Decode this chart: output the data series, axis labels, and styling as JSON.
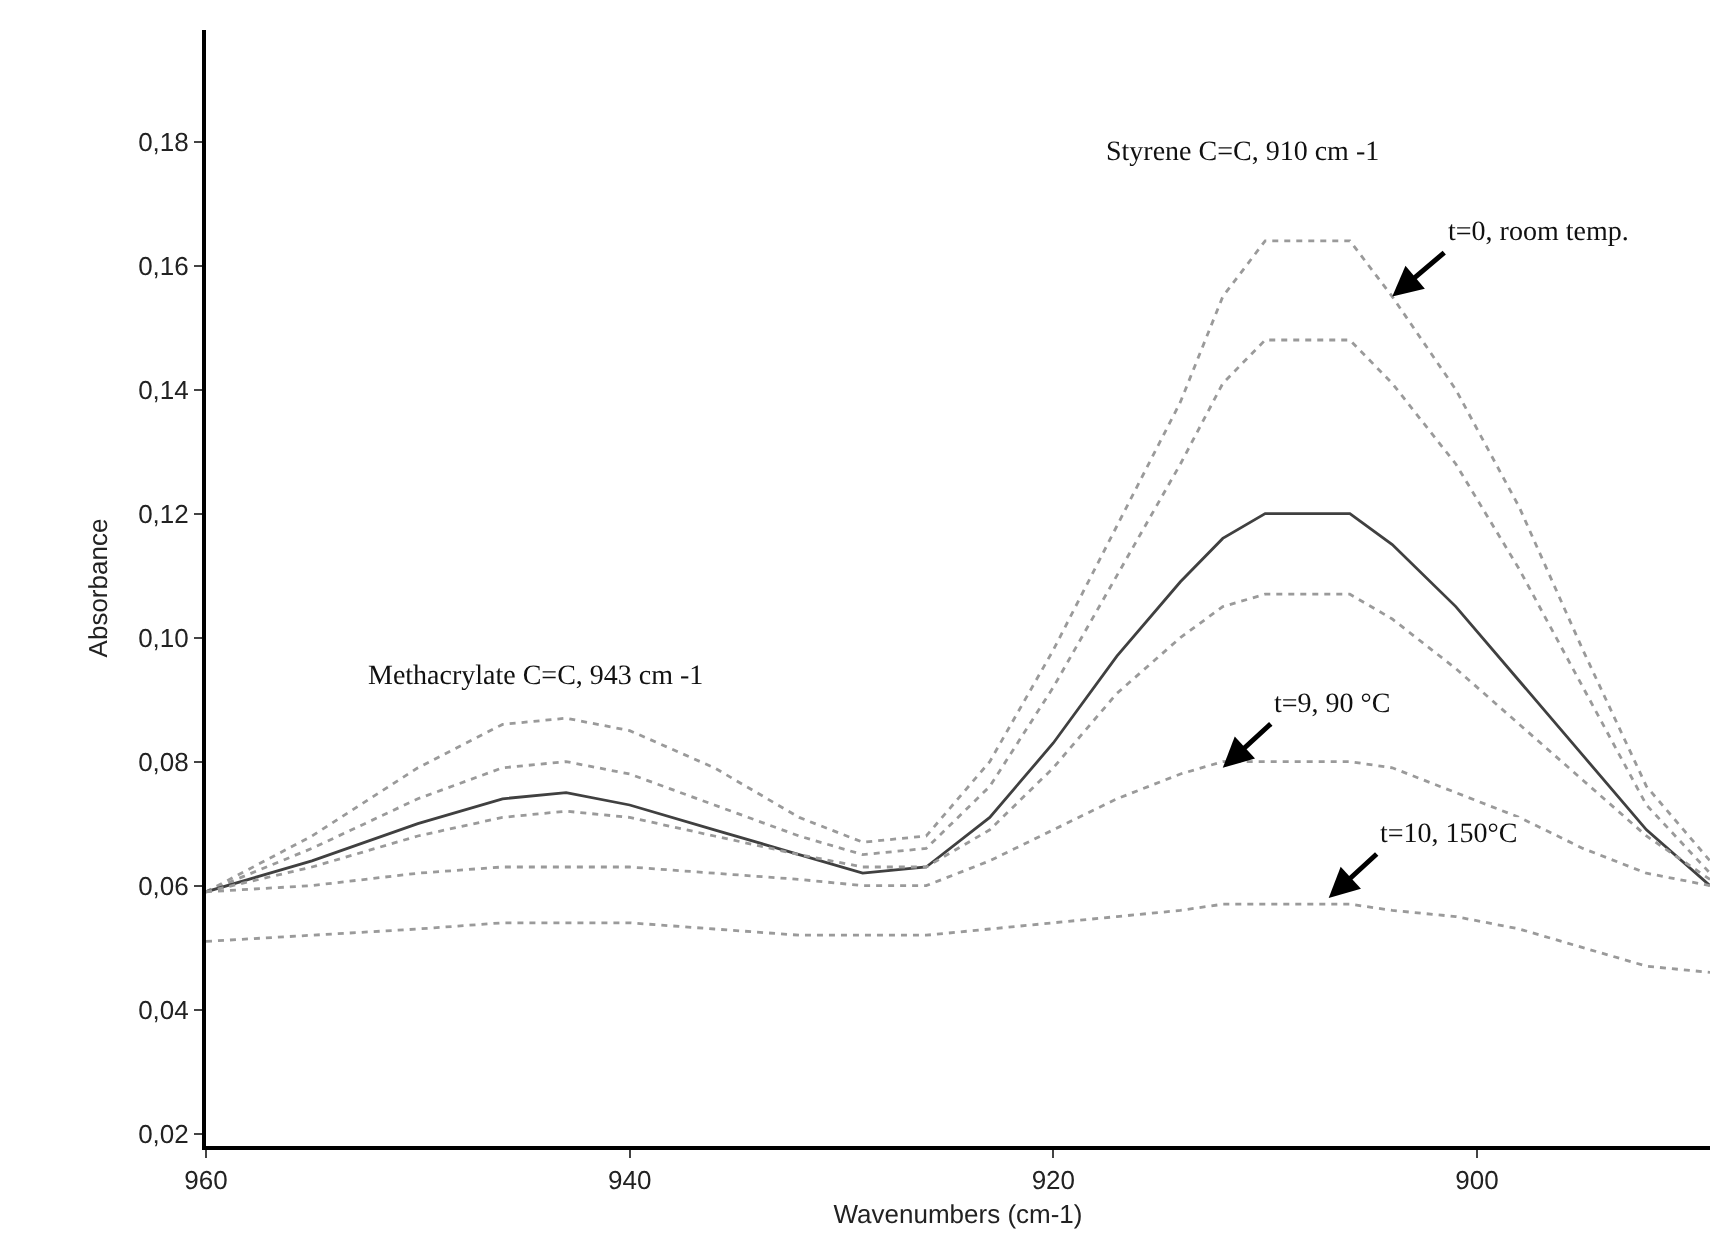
{
  "chart_data": {
    "type": "line",
    "xlabel": "Wavenumbers (cm-1)",
    "ylabel": "Absorbance",
    "x": [
      960,
      955,
      950,
      946,
      943,
      940,
      936,
      932,
      929,
      926,
      923,
      920,
      917,
      914,
      912,
      910,
      906,
      904,
      901,
      898,
      895,
      892,
      889
    ],
    "series": [
      {
        "color": "#9a9a9a",
        "line_style": "dotted",
        "values": [
          0.059,
          0.068,
          0.079,
          0.086,
          0.087,
          0.085,
          0.079,
          0.071,
          0.067,
          0.068,
          0.08,
          0.098,
          0.118,
          0.138,
          0.155,
          0.164,
          0.164,
          0.155,
          0.14,
          0.121,
          0.098,
          0.076,
          0.064
        ]
      },
      {
        "color": "#9a9a9a",
        "line_style": "dotted",
        "values": [
          0.059,
          0.066,
          0.074,
          0.079,
          0.08,
          0.078,
          0.073,
          0.068,
          0.065,
          0.066,
          0.076,
          0.092,
          0.11,
          0.128,
          0.141,
          0.148,
          0.148,
          0.141,
          0.128,
          0.111,
          0.092,
          0.073,
          0.062
        ]
      },
      {
        "color": "#404040",
        "line_style": "solid",
        "values": [
          0.059,
          0.064,
          0.07,
          0.074,
          0.075,
          0.073,
          0.069,
          0.065,
          0.062,
          0.063,
          0.071,
          0.083,
          0.097,
          0.109,
          0.116,
          0.12,
          0.12,
          0.115,
          0.105,
          0.093,
          0.081,
          0.069,
          0.06
        ]
      },
      {
        "color": "#9a9a9a",
        "line_style": "dotted",
        "values": [
          0.059,
          0.063,
          0.068,
          0.071,
          0.072,
          0.071,
          0.068,
          0.065,
          0.063,
          0.063,
          0.069,
          0.079,
          0.091,
          0.1,
          0.105,
          0.107,
          0.107,
          0.103,
          0.095,
          0.086,
          0.077,
          0.068,
          0.061
        ]
      },
      {
        "color": "#9a9a9a",
        "line_style": "dotted",
        "values": [
          0.059,
          0.06,
          0.062,
          0.063,
          0.063,
          0.063,
          0.062,
          0.061,
          0.06,
          0.06,
          0.064,
          0.069,
          0.074,
          0.078,
          0.08,
          0.08,
          0.08,
          0.079,
          0.075,
          0.071,
          0.066,
          0.062,
          0.06
        ]
      },
      {
        "color": "#9a9a9a",
        "line_style": "dotted",
        "values": [
          0.051,
          0.052,
          0.053,
          0.054,
          0.054,
          0.054,
          0.053,
          0.052,
          0.052,
          0.052,
          0.053,
          0.054,
          0.055,
          0.056,
          0.057,
          0.057,
          0.057,
          0.056,
          0.055,
          0.053,
          0.05,
          0.047,
          0.046
        ]
      }
    ],
    "xlim": [
      960,
      889
    ],
    "xticks": [
      960,
      940,
      920,
      900
    ],
    "ylim": [
      0.018,
      0.198
    ],
    "yticks": [
      {
        "value": 0.02,
        "label": "0,02"
      },
      {
        "value": 0.04,
        "label": "0,04"
      },
      {
        "value": 0.06,
        "label": "0,06"
      },
      {
        "value": 0.08,
        "label": "0,08"
      },
      {
        "value": 0.1,
        "label": "0,10"
      },
      {
        "value": 0.12,
        "label": "0,12"
      },
      {
        "value": 0.14,
        "label": "0,14"
      },
      {
        "value": 0.16,
        "label": "0,16"
      },
      {
        "value": 0.18,
        "label": "0,18"
      }
    ],
    "annotations": [
      "Styrene C=C, 910 cm -1",
      {
        "text": "t=0, room temp.",
        "x": 904,
        "y": 0.155
      },
      "Methacrylate C=C, 943 cm -1",
      {
        "text": "t=9, 90 °C",
        "x": 912,
        "y": 0.079
      },
      {
        "text": "t=10, 150°C",
        "x": 907,
        "y": 0.058
      }
    ],
    "grid": false,
    "marker": "none"
  }
}
